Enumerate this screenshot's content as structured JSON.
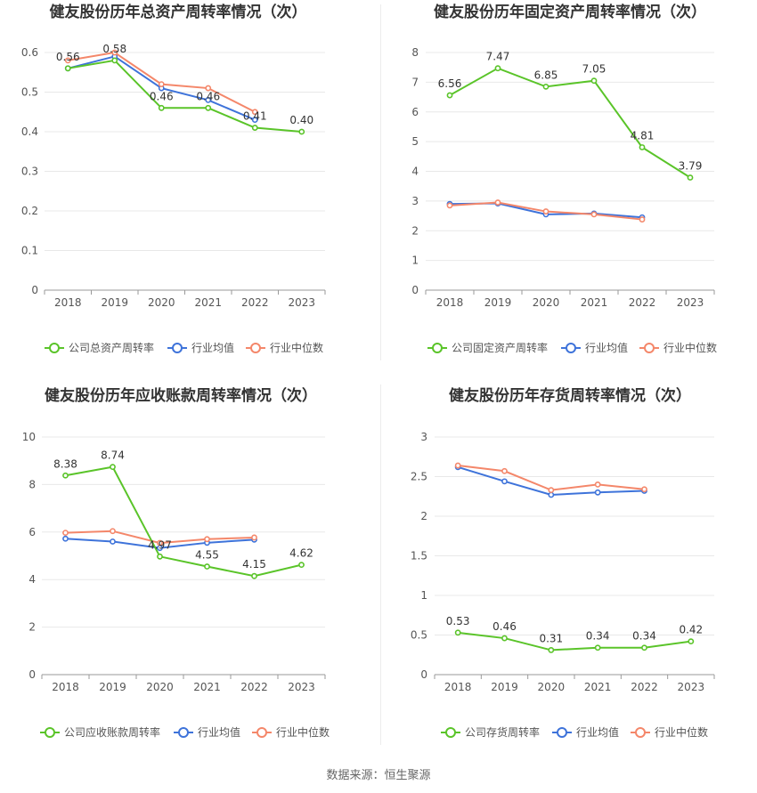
{
  "source": "数据来源：恒生聚源",
  "colors": {
    "company": "#5ac429",
    "avg": "#3e73da",
    "median": "#f4876a",
    "grid": "#e8e8e8",
    "axis": "#999999",
    "text": "#555555"
  },
  "chart_data": [
    {
      "type": "line",
      "title": "健友股份历年总资产周转率情况（次）",
      "categories": [
        "2018",
        "2019",
        "2020",
        "2021",
        "2022",
        "2023"
      ],
      "yticks": [
        "0",
        "0.1",
        "0.2",
        "0.3",
        "0.4",
        "0.5",
        "0.6"
      ],
      "ylim": [
        0,
        0.6
      ],
      "series": [
        {
          "name": "公司总资产周转率",
          "values": [
            0.56,
            0.58,
            0.46,
            0.46,
            0.41,
            0.4
          ],
          "labels": [
            "0.56",
            "0.58",
            "0.46",
            "0.46",
            "0.41",
            "0.40"
          ]
        },
        {
          "name": "行业均值",
          "values": [
            0.56,
            0.59,
            0.51,
            0.48,
            0.43,
            null
          ]
        },
        {
          "name": "行业中位数",
          "values": [
            0.58,
            0.6,
            0.52,
            0.51,
            0.45,
            null
          ]
        }
      ],
      "legend": "bottom"
    },
    {
      "type": "line",
      "title": "健友股份历年固定资产周转率情况（次）",
      "categories": [
        "2018",
        "2019",
        "2020",
        "2021",
        "2022",
        "2023"
      ],
      "yticks": [
        "0",
        "1",
        "2",
        "3",
        "4",
        "5",
        "6",
        "7",
        "8"
      ],
      "ylim": [
        0,
        8
      ],
      "series": [
        {
          "name": "公司固定资产周转率",
          "values": [
            6.56,
            7.47,
            6.85,
            7.05,
            4.81,
            3.79
          ],
          "labels": [
            "6.56",
            "7.47",
            "6.85",
            "7.05",
            "4.81",
            "3.79"
          ]
        },
        {
          "name": "行业均值",
          "values": [
            2.9,
            2.92,
            2.55,
            2.58,
            2.45,
            null
          ]
        },
        {
          "name": "行业中位数",
          "values": [
            2.85,
            2.95,
            2.65,
            2.55,
            2.38,
            null
          ]
        }
      ],
      "legend": "bottom"
    },
    {
      "type": "line",
      "title": "健友股份历年应收账款周转率情况（次）",
      "categories": [
        "2018",
        "2019",
        "2020",
        "2021",
        "2022",
        "2023"
      ],
      "yticks": [
        "0",
        "2",
        "4",
        "6",
        "8",
        "10"
      ],
      "ylim": [
        0,
        10
      ],
      "series": [
        {
          "name": "公司应收账款周转率",
          "values": [
            8.38,
            8.74,
            4.97,
            4.55,
            4.15,
            4.62
          ],
          "labels": [
            "8.38",
            "8.74",
            "4.97",
            "4.55",
            "4.15",
            "4.62"
          ]
        },
        {
          "name": "行业均值",
          "values": [
            5.72,
            5.6,
            5.33,
            5.55,
            5.68,
            null
          ]
        },
        {
          "name": "行业中位数",
          "values": [
            5.97,
            6.04,
            5.54,
            5.7,
            5.77,
            null
          ]
        }
      ],
      "legend": "bottom"
    },
    {
      "type": "line",
      "title": "健友股份历年存货周转率情况（次）",
      "categories": [
        "2018",
        "2019",
        "2020",
        "2021",
        "2022",
        "2023"
      ],
      "yticks": [
        "0",
        "0.5",
        "1",
        "1.5",
        "2",
        "2.5",
        "3"
      ],
      "ylim": [
        0,
        3
      ],
      "series": [
        {
          "name": "公司存货周转率",
          "values": [
            0.53,
            0.46,
            0.31,
            0.34,
            0.34,
            0.42
          ],
          "labels": [
            "0.53",
            "0.46",
            "0.31",
            "0.34",
            "0.34",
            "0.42"
          ]
        },
        {
          "name": "行业均值",
          "values": [
            2.62,
            2.44,
            2.27,
            2.3,
            2.32,
            null
          ]
        },
        {
          "name": "行业中位数",
          "values": [
            2.64,
            2.57,
            2.33,
            2.4,
            2.34,
            null
          ]
        }
      ],
      "legend": "bottom"
    }
  ]
}
